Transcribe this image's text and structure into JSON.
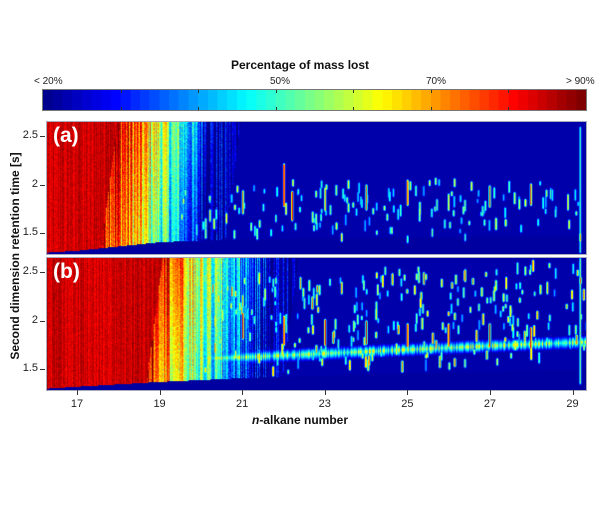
{
  "chart_data": {
    "type": "heatmap",
    "title": "Percentage of mass lost",
    "colorbar": {
      "title": "Percentage of mass lost",
      "tick_labels": [
        {
          "label": "< 20%",
          "position": 0.0
        },
        {
          "label": "50%",
          "position": 0.4286
        },
        {
          "label": "70%",
          "position": 0.7143
        },
        {
          "label": "> 90%",
          "position": 1.0
        }
      ],
      "range": [
        20,
        90
      ],
      "unit": "%",
      "colormap": "jet",
      "stops": [
        "#00008f",
        "#0000ff",
        "#0080ff",
        "#00ffff",
        "#80ff80",
        "#ffff00",
        "#ff8000",
        "#ff0000",
        "#800000"
      ]
    },
    "xlabel_prefix": "n",
    "xlabel_suffix": "-alkane number",
    "xlabel": "n-alkane number",
    "ylabel": "Second dimension retention time [s]",
    "xlim": [
      16.25,
      29.35
    ],
    "ylim": [
      1.27,
      2.66
    ],
    "xticks": [
      17,
      19,
      21,
      23,
      25,
      27,
      29
    ],
    "yticks": [
      1.5,
      2,
      2.5
    ],
    "panels": [
      {
        "label": "(a)",
        "description": "High mass loss (red, >90%) for n-alkanes below ~18, transitioning through yellow/green around 18.5-19.5 to low mass loss (blue) beyond ~20; isolated discrete peaks elsewhere.",
        "front": {
          "red_until": 17.6,
          "yellow_at": 18.5,
          "cyan_at": 19.3,
          "blue_from": 20.0
        },
        "baseline": {
          "x": [
            16.25,
            17,
            19,
            21,
            29.35
          ],
          "y": [
            1.29,
            1.31,
            1.4,
            1.43,
            1.47
          ]
        },
        "peaks": [
          {
            "x": 21.0,
            "y": 1.82,
            "h": 0.22,
            "v": 0.75
          },
          {
            "x": 22.0,
            "y": 2.0,
            "h": 0.42,
            "v": 0.95
          },
          {
            "x": 22.2,
            "y": 1.78,
            "h": 0.28,
            "v": 0.95
          },
          {
            "x": 23.0,
            "y": 1.85,
            "h": 0.22,
            "v": 0.72
          },
          {
            "x": 24.0,
            "y": 1.87,
            "h": 0.24,
            "v": 0.78
          },
          {
            "x": 25.0,
            "y": 1.92,
            "h": 0.24,
            "v": 0.85
          },
          {
            "x": 26.0,
            "y": 1.82,
            "h": 0.15,
            "v": 0.65
          },
          {
            "x": 27.0,
            "y": 1.88,
            "h": 0.2,
            "v": 0.8
          },
          {
            "x": 28.0,
            "y": 1.9,
            "h": 0.2,
            "v": 0.8
          },
          {
            "x": 28.9,
            "y": 1.82,
            "h": 0.14,
            "v": 0.65
          },
          {
            "x": 29.2,
            "y": 1.95,
            "h": 1.3,
            "v": 0.45
          },
          {
            "x": 20.2,
            "y": 1.68,
            "h": 0.1,
            "v": 0.6
          },
          {
            "x": 20.6,
            "y": 1.65,
            "h": 0.08,
            "v": 0.7
          },
          {
            "x": 21.8,
            "y": 1.65,
            "h": 0.05,
            "v": 0.5
          },
          {
            "x": 22.9,
            "y": 1.66,
            "h": 0.05,
            "v": 0.5
          },
          {
            "x": 25.6,
            "y": 1.5,
            "h": 0.06,
            "v": 0.5
          },
          {
            "x": 23.4,
            "y": 1.45,
            "h": 0.06,
            "v": 0.7
          },
          {
            "x": 25.0,
            "y": 1.43,
            "h": 0.05,
            "v": 0.5
          },
          {
            "x": 26.4,
            "y": 1.45,
            "h": 0.05,
            "v": 0.45
          },
          {
            "x": 29.2,
            "y": 1.45,
            "h": 0.06,
            "v": 0.7
          }
        ]
      },
      {
        "label": "(b)",
        "description": "Red (>90%) region extends further to ~n-C19; gradual transition to blue beyond ~21; a band of medium-high loss along 1.6-1.75 s across all n-alkanes with many peaks.",
        "front": {
          "red_until": 18.7,
          "yellow_at": 19.4,
          "cyan_at": 20.4,
          "blue_from": 21.4
        },
        "baseline": {
          "x": [
            16.25,
            17,
            19,
            21,
            29.35
          ],
          "y": [
            1.29,
            1.31,
            1.36,
            1.4,
            1.5
          ]
        },
        "band": {
          "x": [
            18.5,
            21,
            23,
            25,
            27,
            29.35
          ],
          "y": [
            1.58,
            1.62,
            1.66,
            1.7,
            1.74,
            1.78
          ],
          "v": 0.55
        },
        "peaks": [
          {
            "x": 21.0,
            "y": 1.95,
            "h": 0.25,
            "v": 0.9
          },
          {
            "x": 22.0,
            "y": 1.9,
            "h": 0.28,
            "v": 0.9
          },
          {
            "x": 23.0,
            "y": 1.88,
            "h": 0.25,
            "v": 0.9
          },
          {
            "x": 24.0,
            "y": 1.88,
            "h": 0.22,
            "v": 0.9
          },
          {
            "x": 25.0,
            "y": 1.85,
            "h": 0.22,
            "v": 0.9
          },
          {
            "x": 26.0,
            "y": 1.85,
            "h": 0.22,
            "v": 0.9
          },
          {
            "x": 27.0,
            "y": 1.85,
            "h": 0.22,
            "v": 0.9
          },
          {
            "x": 28.0,
            "y": 1.82,
            "h": 0.2,
            "v": 0.9
          },
          {
            "x": 29.2,
            "y": 2.0,
            "h": 1.3,
            "v": 0.5
          },
          {
            "x": 21.4,
            "y": 2.45,
            "h": 0.1,
            "v": 0.7
          },
          {
            "x": 22.4,
            "y": 2.4,
            "h": 0.1,
            "v": 0.7
          },
          {
            "x": 23.4,
            "y": 2.35,
            "h": 0.1,
            "v": 0.75
          },
          {
            "x": 24.4,
            "y": 2.42,
            "h": 0.1,
            "v": 0.75
          },
          {
            "x": 25.4,
            "y": 2.45,
            "h": 0.1,
            "v": 0.8
          },
          {
            "x": 26.4,
            "y": 2.48,
            "h": 0.1,
            "v": 0.8
          },
          {
            "x": 27.4,
            "y": 2.4,
            "h": 0.1,
            "v": 0.75
          },
          {
            "x": 28.4,
            "y": 2.35,
            "h": 0.1,
            "v": 0.7
          }
        ]
      }
    ]
  }
}
